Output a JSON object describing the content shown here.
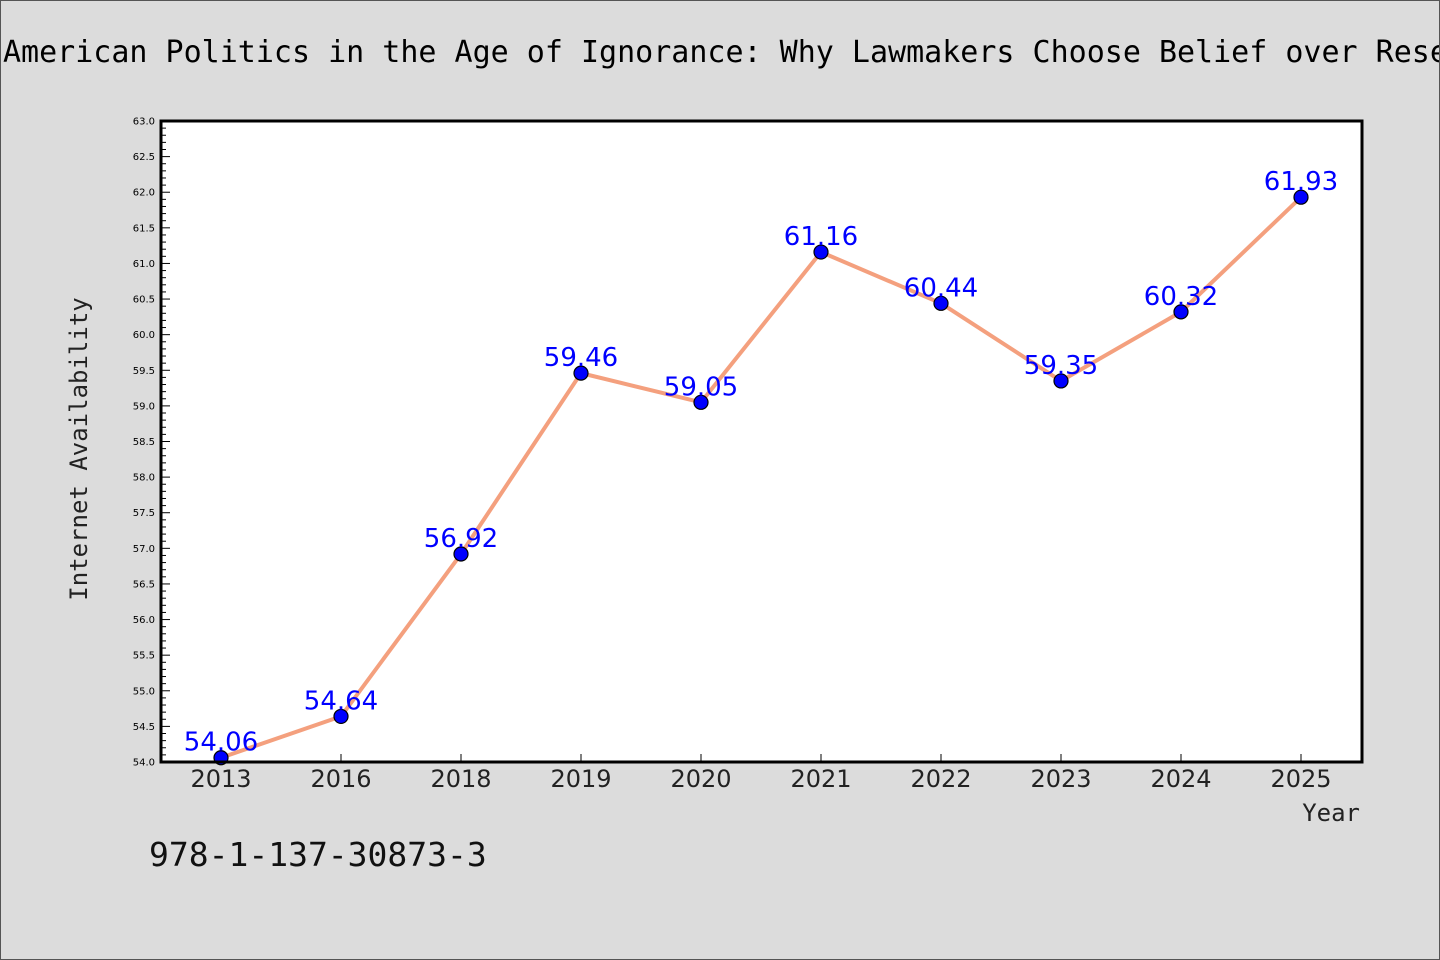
{
  "chart_data": {
    "type": "line",
    "title": "American Politics in the Age of Ignorance: Why Lawmakers Choose Belief over Rese",
    "xlabel": "Year",
    "ylabel": "Internet Availability",
    "categories": [
      "2013",
      "2016",
      "2018",
      "2019",
      "2020",
      "2021",
      "2022",
      "2023",
      "2024",
      "2025"
    ],
    "series": [
      {
        "values": [
          54.06,
          54.64,
          56.92,
          59.46,
          59.05,
          61.16,
          60.44,
          59.35,
          60.32,
          61.93
        ],
        "labels": [
          "54.06",
          "54.64",
          "56.92",
          "59.46",
          "59.05",
          "61.16",
          "60.44",
          "59.35",
          "60.32",
          "61.93"
        ]
      }
    ],
    "ylim": [
      54.0,
      63.0
    ],
    "yticks": [
      "54.0",
      "54.5",
      "55.0",
      "55.5",
      "56.0",
      "56.5",
      "57.0",
      "57.5",
      "58.0",
      "58.5",
      "59.0",
      "59.5",
      "60.0",
      "60.5",
      "61.0",
      "61.5",
      "62.0",
      "62.5",
      "63.0"
    ],
    "grid": false,
    "line_color": "#f4a07e",
    "marker_color": "#0000ff",
    "label_color": "#0000ff"
  },
  "footer": {
    "isbn": "978-1-137-30873-3"
  }
}
